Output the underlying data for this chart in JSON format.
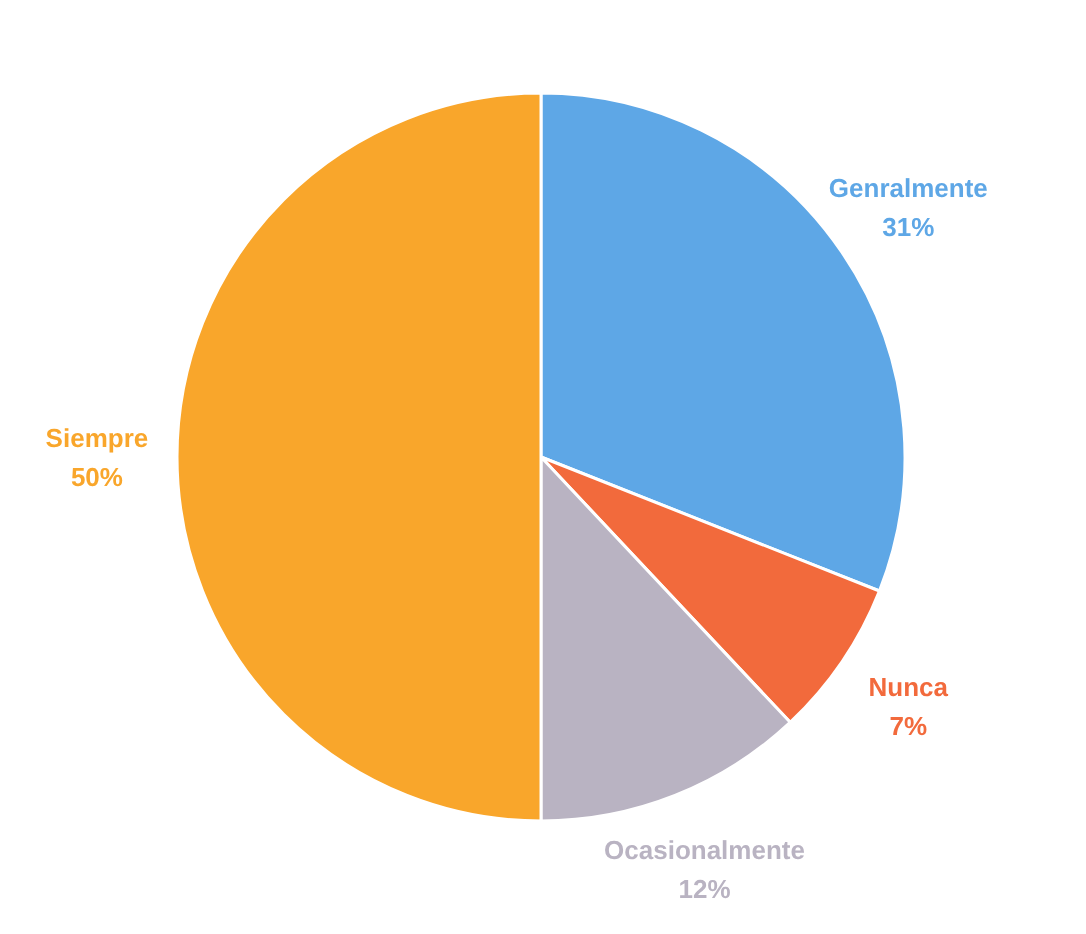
{
  "chart_data": {
    "type": "pie",
    "categories": [
      "Genralmente",
      "Nunca",
      "Ocasionalmente",
      "Siempre"
    ],
    "values": [
      31,
      7,
      12,
      50
    ],
    "value_labels": [
      "31%",
      "7%",
      "12%",
      "50%"
    ],
    "colors": [
      "#5ea7e6",
      "#f26a3c",
      "#b9b3c2",
      "#f9a62b"
    ],
    "legend": false
  }
}
